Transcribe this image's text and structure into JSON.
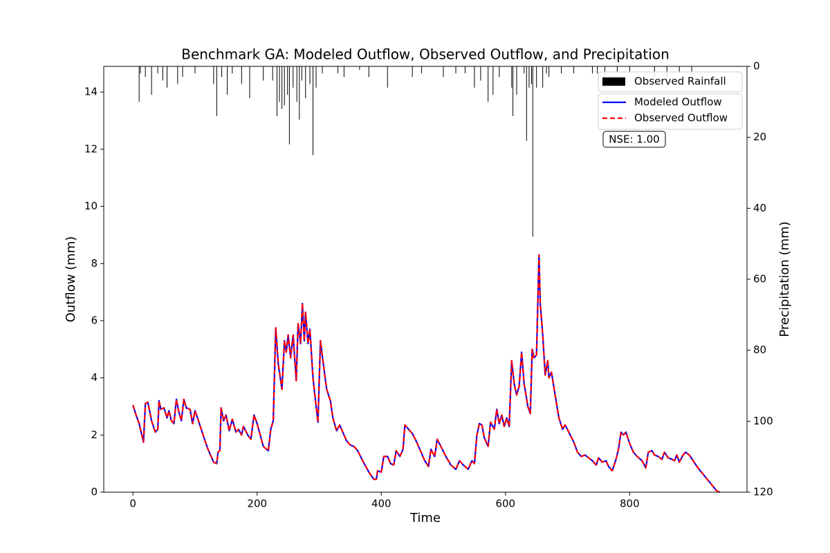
{
  "chart_data": {
    "type": "line",
    "title": "Benchmark GA: Modeled Outflow, Observed Outflow, and Precipitation",
    "x_label": "Time",
    "y_label": "Outflow (mm)",
    "y2_label": "Precipitation (mm)",
    "annotation": "NSE: 1.00",
    "xlim": [
      -47,
      989
    ],
    "ylim": [
      0,
      14.9
    ],
    "y2lim": [
      120,
      0
    ],
    "xticks": [
      0,
      200,
      400,
      600,
      800
    ],
    "yticks": [
      0,
      2,
      4,
      6,
      8,
      10,
      12,
      14
    ],
    "y2ticks": [
      0,
      20,
      40,
      60,
      80,
      100,
      120
    ],
    "x": [
      0,
      5,
      10,
      17,
      20,
      24,
      30,
      36,
      40,
      42,
      45,
      50,
      55,
      58,
      62,
      66,
      70,
      74,
      78,
      82,
      86,
      92,
      96,
      100,
      104,
      110,
      120,
      130,
      135,
      137,
      140,
      142,
      146,
      150,
      155,
      160,
      166,
      170,
      175,
      178,
      185,
      190,
      195,
      200,
      210,
      218,
      222,
      226,
      230,
      234,
      240,
      244,
      247,
      250,
      254,
      258,
      263,
      266,
      270,
      273,
      276,
      278,
      282,
      285,
      290,
      295,
      298,
      302,
      306,
      312,
      318,
      322,
      328,
      333,
      338,
      344,
      350,
      356,
      362,
      370,
      380,
      388,
      392,
      394,
      400,
      404,
      410,
      415,
      420,
      424,
      430,
      435,
      438,
      444,
      450,
      456,
      462,
      470,
      476,
      480,
      486,
      490,
      496,
      504,
      512,
      520,
      526,
      532,
      540,
      546,
      550,
      554,
      558,
      562,
      566,
      572,
      576,
      582,
      586,
      590,
      594,
      598,
      602,
      606,
      610,
      614,
      618,
      622,
      626,
      630,
      636,
      640,
      643,
      646,
      650,
      654,
      656,
      660,
      664,
      668,
      670,
      674,
      680,
      686,
      692,
      696,
      702,
      710,
      716,
      722,
      728,
      734,
      740,
      746,
      750,
      756,
      762,
      766,
      772,
      778,
      782,
      786,
      790,
      794,
      800,
      806,
      812,
      820,
      826,
      830,
      836,
      840,
      846,
      852,
      856,
      862,
      868,
      872,
      876,
      880,
      886,
      890,
      896,
      910,
      925,
      940,
      945
    ],
    "series": [
      {
        "name": "Observed Rainfall",
        "type": "bar",
        "axis": "y2",
        "color": "#000000",
        "x": [
          10,
          12,
          20,
          30,
          40,
          48,
          55,
          72,
          80,
          100,
          130,
          135,
          143,
          152,
          160,
          175,
          188,
          210,
          225,
          232,
          236,
          240,
          244,
          249,
          252,
          258,
          264,
          268,
          272,
          278,
          285,
          290,
          295,
          305,
          330,
          340,
          365,
          380,
          410,
          450,
          465,
          500,
          520,
          535,
          550,
          560,
          572,
          580,
          590,
          610,
          612,
          618,
          630,
          634,
          638,
          642,
          644,
          650,
          660,
          666,
          670,
          690,
          710,
          740,
          748,
          760,
          780,
          800,
          840,
          860,
          880,
          900
        ],
        "values": [
          10,
          2,
          3,
          8,
          2,
          4,
          6,
          5,
          3,
          2,
          5,
          14,
          3,
          8,
          2,
          5,
          9,
          4,
          4,
          14,
          10,
          12,
          11,
          8,
          22,
          6,
          10,
          15,
          4,
          9,
          5,
          25,
          6,
          2,
          2,
          3,
          1,
          3,
          6,
          3,
          2,
          3,
          2,
          2,
          6,
          4,
          10,
          8,
          3,
          6,
          14,
          8,
          2,
          21,
          6,
          5,
          48,
          6,
          6,
          2,
          3,
          2,
          2,
          2,
          2,
          3,
          2,
          2,
          3,
          3,
          2,
          2
        ]
      },
      {
        "name": "Modeled Outflow",
        "color": "#0000ff",
        "values": [
          3.05,
          2.7,
          2.4,
          1.75,
          3.1,
          3.15,
          2.5,
          2.1,
          2.2,
          3.2,
          2.9,
          2.95,
          2.6,
          2.85,
          2.5,
          2.4,
          3.25,
          2.8,
          2.5,
          3.25,
          2.95,
          2.9,
          2.4,
          2.85,
          2.6,
          2.2,
          1.55,
          1.05,
          1.0,
          1.4,
          1.45,
          2.95,
          2.5,
          2.7,
          2.15,
          2.55,
          2.1,
          2.2,
          2.0,
          2.3,
          2.0,
          1.85,
          2.7,
          2.4,
          1.6,
          1.45,
          2.2,
          2.5,
          5.75,
          4.5,
          3.6,
          5.3,
          4.9,
          5.5,
          4.7,
          5.5,
          3.9,
          5.9,
          5.2,
          6.6,
          5.3,
          6.3,
          5.2,
          5.7,
          4.0,
          3.0,
          2.45,
          5.3,
          4.6,
          3.6,
          3.2,
          2.6,
          2.15,
          2.35,
          2.1,
          1.8,
          1.65,
          1.6,
          1.45,
          1.1,
          0.7,
          0.45,
          0.45,
          0.75,
          0.7,
          1.25,
          1.25,
          1.0,
          0.95,
          1.45,
          1.25,
          1.5,
          2.35,
          2.2,
          2.05,
          1.8,
          1.5,
          1.1,
          0.9,
          1.5,
          1.25,
          1.85,
          1.6,
          1.25,
          0.95,
          0.8,
          1.1,
          0.95,
          0.8,
          1.1,
          1.0,
          2.0,
          2.4,
          2.35,
          1.9,
          1.6,
          2.45,
          2.2,
          2.9,
          2.4,
          2.7,
          2.3,
          2.6,
          2.3,
          4.6,
          3.8,
          3.4,
          3.7,
          4.9,
          3.8,
          3.0,
          2.75,
          5.0,
          4.7,
          4.8,
          8.3,
          6.6,
          5.5,
          4.1,
          4.6,
          4.0,
          4.2,
          3.4,
          2.6,
          2.2,
          2.35,
          2.1,
          1.75,
          1.4,
          1.25,
          1.3,
          1.2,
          1.1,
          0.95,
          1.2,
          1.05,
          1.1,
          0.9,
          0.75,
          1.15,
          1.5,
          2.1,
          2.0,
          2.1,
          1.7,
          1.4,
          1.25,
          1.1,
          0.85,
          1.4,
          1.45,
          1.3,
          1.25,
          1.15,
          1.4,
          1.2,
          1.15,
          1.1,
          1.3,
          1.05,
          1.3,
          1.4,
          1.3,
          0.85,
          0.45,
          0.05,
          0.0
        ]
      },
      {
        "name": "Observed Outflow",
        "color": "#ff0000",
        "dashed": true,
        "values": [
          3.05,
          2.7,
          2.4,
          1.75,
          3.1,
          3.15,
          2.5,
          2.1,
          2.2,
          3.2,
          2.9,
          2.95,
          2.6,
          2.85,
          2.5,
          2.4,
          3.25,
          2.8,
          2.5,
          3.25,
          2.95,
          2.9,
          2.4,
          2.85,
          2.6,
          2.2,
          1.55,
          1.05,
          1.0,
          1.4,
          1.45,
          2.95,
          2.5,
          2.7,
          2.15,
          2.55,
          2.1,
          2.2,
          2.0,
          2.3,
          2.0,
          1.85,
          2.7,
          2.4,
          1.6,
          1.45,
          2.2,
          2.5,
          5.75,
          4.5,
          3.6,
          5.3,
          4.9,
          5.5,
          4.7,
          5.5,
          3.9,
          5.9,
          5.2,
          6.6,
          5.3,
          6.3,
          5.2,
          5.7,
          4.0,
          3.0,
          2.45,
          5.3,
          4.6,
          3.6,
          3.2,
          2.6,
          2.15,
          2.35,
          2.1,
          1.8,
          1.65,
          1.6,
          1.45,
          1.1,
          0.7,
          0.45,
          0.45,
          0.75,
          0.7,
          1.25,
          1.25,
          1.0,
          0.95,
          1.45,
          1.25,
          1.5,
          2.35,
          2.2,
          2.05,
          1.8,
          1.5,
          1.1,
          0.9,
          1.5,
          1.25,
          1.85,
          1.6,
          1.25,
          0.95,
          0.8,
          1.1,
          0.95,
          0.8,
          1.1,
          1.0,
          2.0,
          2.4,
          2.35,
          1.9,
          1.6,
          2.45,
          2.2,
          2.9,
          2.4,
          2.7,
          2.3,
          2.6,
          2.3,
          4.6,
          3.8,
          3.4,
          3.7,
          4.9,
          3.8,
          3.0,
          2.75,
          5.0,
          4.7,
          4.8,
          8.3,
          6.6,
          5.5,
          4.1,
          4.6,
          4.0,
          4.2,
          3.4,
          2.6,
          2.2,
          2.35,
          2.1,
          1.75,
          1.4,
          1.25,
          1.3,
          1.2,
          1.1,
          0.95,
          1.2,
          1.05,
          1.1,
          0.9,
          0.75,
          1.15,
          1.5,
          2.1,
          2.0,
          2.1,
          1.7,
          1.4,
          1.25,
          1.1,
          0.85,
          1.4,
          1.45,
          1.3,
          1.25,
          1.15,
          1.4,
          1.2,
          1.15,
          1.1,
          1.3,
          1.05,
          1.3,
          1.4,
          1.3,
          0.85,
          0.45,
          0.05,
          0.0
        ]
      }
    ]
  }
}
